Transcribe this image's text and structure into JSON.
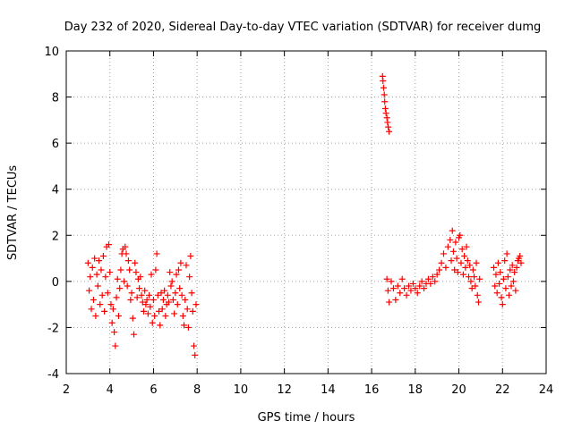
{
  "chart_data": {
    "type": "scatter",
    "title": "Day 232 of 2020, Sidereal Day-to-day VTEC variation (SDTVAR) for receiver dumg",
    "xlabel": "GPS time / hours",
    "ylabel": "SDTVAR / TECUs",
    "xlim": [
      2,
      24
    ],
    "ylim": [
      -4,
      10
    ],
    "xticks": [
      2,
      4,
      6,
      8,
      10,
      12,
      14,
      16,
      18,
      20,
      22,
      24
    ],
    "yticks": [
      -4,
      -2,
      0,
      2,
      4,
      6,
      8,
      10
    ],
    "grid": true,
    "marker": "+",
    "color": "#ff0000",
    "series": [
      {
        "name": "SDTVAR",
        "points": [
          [
            3.0,
            0.8
          ],
          [
            3.05,
            -0.4
          ],
          [
            3.1,
            0.2
          ],
          [
            3.15,
            -1.2
          ],
          [
            3.2,
            0.6
          ],
          [
            3.25,
            -0.8
          ],
          [
            3.3,
            1.0
          ],
          [
            3.35,
            -1.5
          ],
          [
            3.4,
            0.3
          ],
          [
            3.45,
            -0.2
          ],
          [
            3.5,
            0.9
          ],
          [
            3.55,
            -1.0
          ],
          [
            3.6,
            0.5
          ],
          [
            3.65,
            -0.6
          ],
          [
            3.7,
            1.1
          ],
          [
            3.75,
            -1.3
          ],
          [
            3.8,
            0.2
          ],
          [
            3.85,
            1.5
          ],
          [
            3.9,
            -0.5
          ],
          [
            3.95,
            1.6
          ],
          [
            4.0,
            0.4
          ],
          [
            4.05,
            -1.0
          ],
          [
            4.1,
            -1.8
          ],
          [
            4.15,
            -1.2
          ],
          [
            4.2,
            -2.2
          ],
          [
            4.25,
            -2.8
          ],
          [
            4.3,
            -0.7
          ],
          [
            4.35,
            0.1
          ],
          [
            4.4,
            -1.5
          ],
          [
            4.45,
            -0.3
          ],
          [
            4.5,
            0.5
          ],
          [
            4.55,
            1.2
          ],
          [
            4.6,
            1.4
          ],
          [
            4.65,
            0.0
          ],
          [
            4.7,
            1.5
          ],
          [
            4.75,
            1.2
          ],
          [
            4.8,
            -0.2
          ],
          [
            4.85,
            0.9
          ],
          [
            4.9,
            0.5
          ],
          [
            4.95,
            -0.8
          ],
          [
            5.0,
            -0.5
          ],
          [
            5.05,
            -1.6
          ],
          [
            5.1,
            -2.3
          ],
          [
            5.15,
            0.8
          ],
          [
            5.2,
            0.4
          ],
          [
            5.25,
            -0.7
          ],
          [
            5.3,
            0.1
          ],
          [
            5.35,
            -0.3
          ],
          [
            5.4,
            0.2
          ],
          [
            5.45,
            -0.6
          ],
          [
            5.5,
            -0.9
          ],
          [
            5.55,
            -1.3
          ],
          [
            5.6,
            -0.4
          ],
          [
            5.65,
            -1.0
          ],
          [
            5.7,
            -0.8
          ],
          [
            5.75,
            -1.4
          ],
          [
            5.8,
            -0.6
          ],
          [
            5.85,
            -1.1
          ],
          [
            5.9,
            0.3
          ],
          [
            5.95,
            -1.8
          ],
          [
            6.0,
            -0.8
          ],
          [
            6.05,
            -1.5
          ],
          [
            6.1,
            0.5
          ],
          [
            6.15,
            1.2
          ],
          [
            6.2,
            -0.6
          ],
          [
            6.25,
            -1.3
          ],
          [
            6.3,
            -1.9
          ],
          [
            6.35,
            -0.5
          ],
          [
            6.4,
            -1.2
          ],
          [
            6.45,
            -0.8
          ],
          [
            6.5,
            -0.4
          ],
          [
            6.55,
            -1.5
          ],
          [
            6.6,
            -1.0
          ],
          [
            6.65,
            -0.6
          ],
          [
            6.7,
            -0.9
          ],
          [
            6.75,
            0.4
          ],
          [
            6.8,
            -0.2
          ],
          [
            6.85,
            0.0
          ],
          [
            6.9,
            -0.8
          ],
          [
            6.95,
            -1.4
          ],
          [
            7.0,
            -0.5
          ],
          [
            7.05,
            0.3
          ],
          [
            7.1,
            -1.0
          ],
          [
            7.15,
            0.5
          ],
          [
            7.2,
            -0.3
          ],
          [
            7.25,
            0.8
          ],
          [
            7.3,
            -0.6
          ],
          [
            7.35,
            -1.5
          ],
          [
            7.4,
            -1.9
          ],
          [
            7.45,
            -0.8
          ],
          [
            7.5,
            0.7
          ],
          [
            7.55,
            -1.2
          ],
          [
            7.6,
            -2.0
          ],
          [
            7.65,
            0.2
          ],
          [
            7.7,
            1.1
          ],
          [
            7.75,
            -0.5
          ],
          [
            7.8,
            -1.3
          ],
          [
            7.85,
            -2.8
          ],
          [
            7.9,
            -3.2
          ],
          [
            7.95,
            -1.0
          ],
          [
            16.5,
            8.9
          ],
          [
            16.52,
            8.7
          ],
          [
            16.55,
            8.4
          ],
          [
            16.58,
            8.1
          ],
          [
            16.6,
            7.8
          ],
          [
            16.63,
            7.5
          ],
          [
            16.66,
            7.3
          ],
          [
            16.7,
            7.1
          ],
          [
            16.73,
            6.9
          ],
          [
            16.76,
            6.7
          ],
          [
            16.8,
            6.5
          ],
          [
            16.7,
            0.1
          ],
          [
            16.75,
            -0.4
          ],
          [
            16.8,
            -0.9
          ],
          [
            16.9,
            0.0
          ],
          [
            17.0,
            -0.3
          ],
          [
            17.1,
            -0.8
          ],
          [
            17.2,
            -0.2
          ],
          [
            17.3,
            -0.5
          ],
          [
            17.4,
            0.1
          ],
          [
            17.5,
            -0.3
          ],
          [
            17.6,
            -0.6
          ],
          [
            17.7,
            -0.2
          ],
          [
            17.8,
            -0.4
          ],
          [
            17.9,
            -0.1
          ],
          [
            18.0,
            -0.3
          ],
          [
            18.1,
            -0.5
          ],
          [
            18.2,
            -0.2
          ],
          [
            18.3,
            0.0
          ],
          [
            18.4,
            -0.3
          ],
          [
            18.5,
            -0.1
          ],
          [
            18.6,
            0.1
          ],
          [
            18.7,
            -0.1
          ],
          [
            18.8,
            0.2
          ],
          [
            18.9,
            0.0
          ],
          [
            19.0,
            0.3
          ],
          [
            19.1,
            0.5
          ],
          [
            19.2,
            0.8
          ],
          [
            19.3,
            1.2
          ],
          [
            19.4,
            0.6
          ],
          [
            19.5,
            1.5
          ],
          [
            19.6,
            1.8
          ],
          [
            19.65,
            0.9
          ],
          [
            19.7,
            2.2
          ],
          [
            19.75,
            1.3
          ],
          [
            19.8,
            0.5
          ],
          [
            19.85,
            1.7
          ],
          [
            19.9,
            1.0
          ],
          [
            19.95,
            0.4
          ],
          [
            20.0,
            1.9
          ],
          [
            20.05,
            2.0
          ],
          [
            20.1,
            0.8
          ],
          [
            20.15,
            1.4
          ],
          [
            20.2,
            0.3
          ],
          [
            20.25,
            1.1
          ],
          [
            20.3,
            0.6
          ],
          [
            20.35,
            1.5
          ],
          [
            20.4,
            0.9
          ],
          [
            20.45,
            0.2
          ],
          [
            20.5,
            0.7
          ],
          [
            20.55,
            0.0
          ],
          [
            20.6,
            -0.3
          ],
          [
            20.65,
            0.5
          ],
          [
            20.7,
            0.2
          ],
          [
            20.75,
            -0.2
          ],
          [
            20.8,
            0.8
          ],
          [
            20.85,
            -0.6
          ],
          [
            20.9,
            -0.9
          ],
          [
            20.95,
            0.1
          ],
          [
            21.6,
            0.6
          ],
          [
            21.65,
            -0.2
          ],
          [
            21.7,
            0.3
          ],
          [
            21.75,
            -0.5
          ],
          [
            21.8,
            0.8
          ],
          [
            21.85,
            -0.1
          ],
          [
            21.9,
            0.4
          ],
          [
            21.95,
            -0.7
          ],
          [
            22.0,
            -1.0
          ],
          [
            22.05,
            0.1
          ],
          [
            22.1,
            0.9
          ],
          [
            22.15,
            -0.3
          ],
          [
            22.2,
            1.2
          ],
          [
            22.25,
            0.2
          ],
          [
            22.3,
            -0.6
          ],
          [
            22.35,
            0.5
          ],
          [
            22.4,
            -0.2
          ],
          [
            22.45,
            0.7
          ],
          [
            22.5,
            0.0
          ],
          [
            22.55,
            0.4
          ],
          [
            22.6,
            -0.4
          ],
          [
            22.65,
            0.6
          ],
          [
            22.7,
            0.9
          ],
          [
            22.75,
            1.0
          ],
          [
            22.8,
            1.1
          ],
          [
            22.85,
            0.8
          ]
        ]
      }
    ]
  }
}
